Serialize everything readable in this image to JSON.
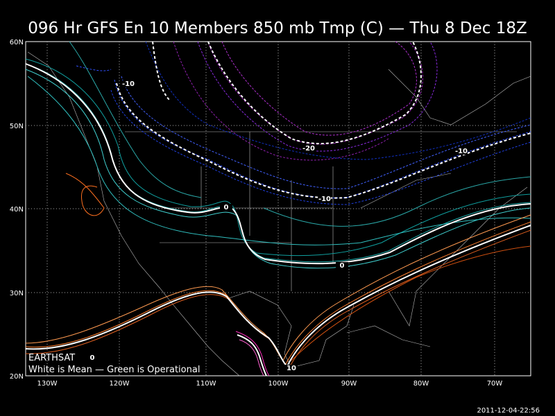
{
  "title": "096 Hr GFS En 10 Members 850 mb Tmp (C) — Thu 8 Dec 18Z",
  "lat_labels": [
    "60N",
    "50N",
    "40N",
    "30N",
    "20N"
  ],
  "lon_labels": [
    "130W",
    "120W",
    "110W",
    "100W",
    "90W",
    "80W",
    "70W"
  ],
  "contour_labels": [
    "-10",
    "-20",
    "-10",
    "-10",
    "0",
    "0",
    "0",
    "10"
  ],
  "credit": "EARTHSAT",
  "legend": "White is Mean — Green is Operational",
  "timestamp": "2011-12-04-22:56"
}
